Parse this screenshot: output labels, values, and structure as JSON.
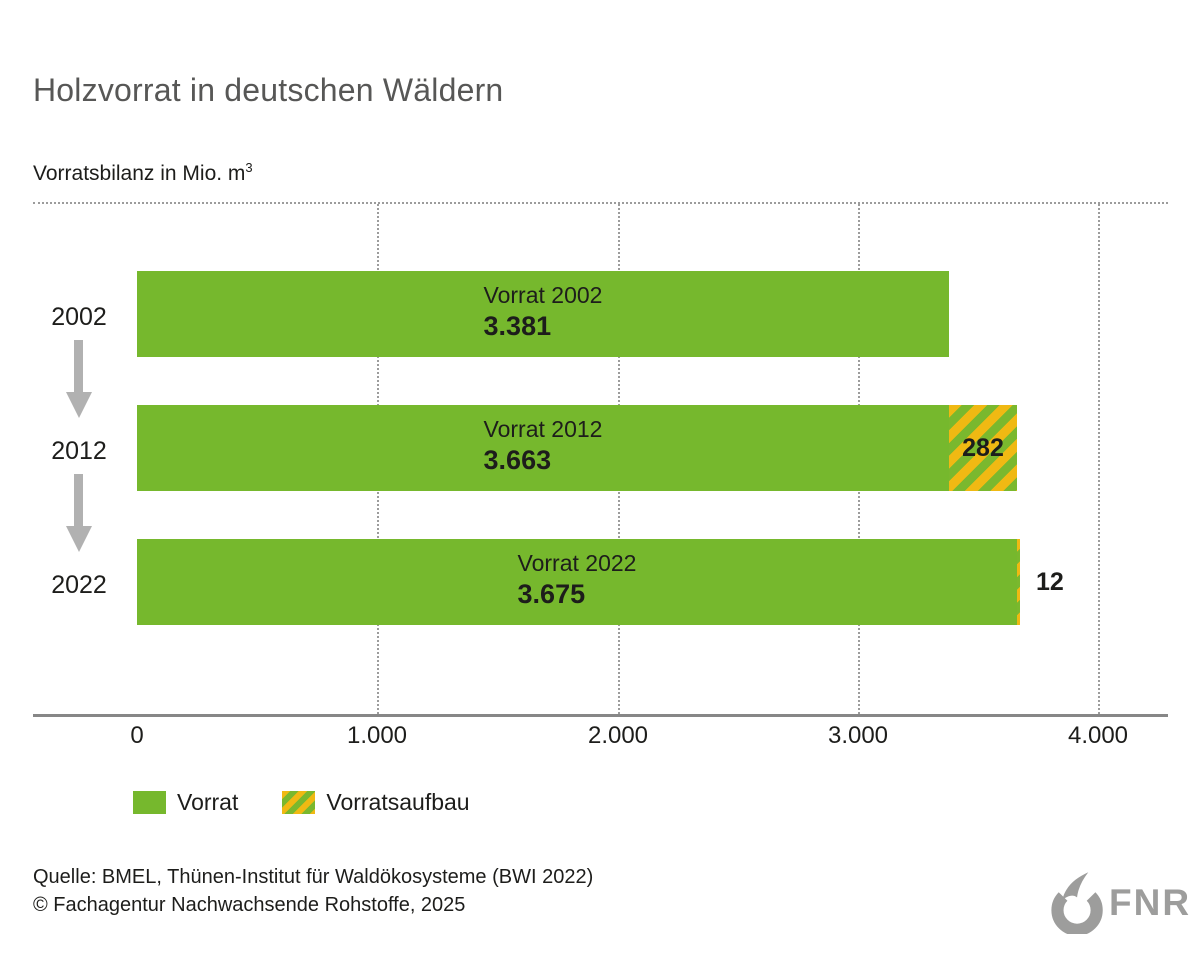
{
  "header": {
    "title": "Holzvorrat in deutschen Wäldern",
    "subtitle_text": "Vorratsbilanz in Mio. m",
    "subtitle_sup": "3"
  },
  "chart_data": {
    "type": "bar",
    "orientation": "horizontal",
    "title": "Holzvorrat in deutschen Wäldern",
    "unit_label": "Vorratsbilanz in Mio. m³",
    "xlim": [
      0,
      4000
    ],
    "grid": "vertical-dotted",
    "x_ticks": [
      {
        "value": 0,
        "label": "0"
      },
      {
        "value": 1000,
        "label": "1.000"
      },
      {
        "value": 2000,
        "label": "2.000"
      },
      {
        "value": 3000,
        "label": "3.000"
      },
      {
        "value": 4000,
        "label": "4.000"
      }
    ],
    "categories": [
      "2002",
      "2012",
      "2022"
    ],
    "series": [
      {
        "name": "Vorrat",
        "values": [
          3381,
          3663,
          3675
        ]
      },
      {
        "name": "Vorratsaufbau",
        "values": [
          0,
          282,
          12
        ]
      }
    ],
    "bars": [
      {
        "year": "2002",
        "bar_label": "Vorrat 2002",
        "value": 3381,
        "value_label": "3.381",
        "aufbau": 0,
        "aufbau_label": "",
        "aufbau_label_position": "none"
      },
      {
        "year": "2012",
        "bar_label": "Vorrat 2012",
        "value": 3663,
        "value_label": "3.663",
        "aufbau": 282,
        "aufbau_label": "282",
        "aufbau_label_position": "inside"
      },
      {
        "year": "2022",
        "bar_label": "Vorrat 2022",
        "value": 3675,
        "value_label": "3.675",
        "aufbau": 12,
        "aufbau_label": "12",
        "aufbau_label_position": "outside"
      }
    ]
  },
  "legend": {
    "items": [
      {
        "label": "Vorrat",
        "swatch": "solid-green"
      },
      {
        "label": "Vorratsaufbau",
        "swatch": "striped-yellow-green"
      }
    ]
  },
  "footer": {
    "source_line1": "Quelle: BMEL, Thünen-Institut für Waldökosysteme (BWI 2022)",
    "source_line2": "© Fachagentur Nachwachsende Rohstoffe, 2025",
    "logo_text": "FNR"
  },
  "colors": {
    "bar_green": "#76b82d",
    "stripe_yellow": "#f0b913",
    "stripe_green": "#7ab82e",
    "title_gray": "#575756",
    "text_dark": "#1d1d1b",
    "axis_gray": "#878787",
    "grid_gray": "#9c9c9c",
    "arrow_gray": "#b1b1b1",
    "logo_gray": "#9d9d9c"
  }
}
